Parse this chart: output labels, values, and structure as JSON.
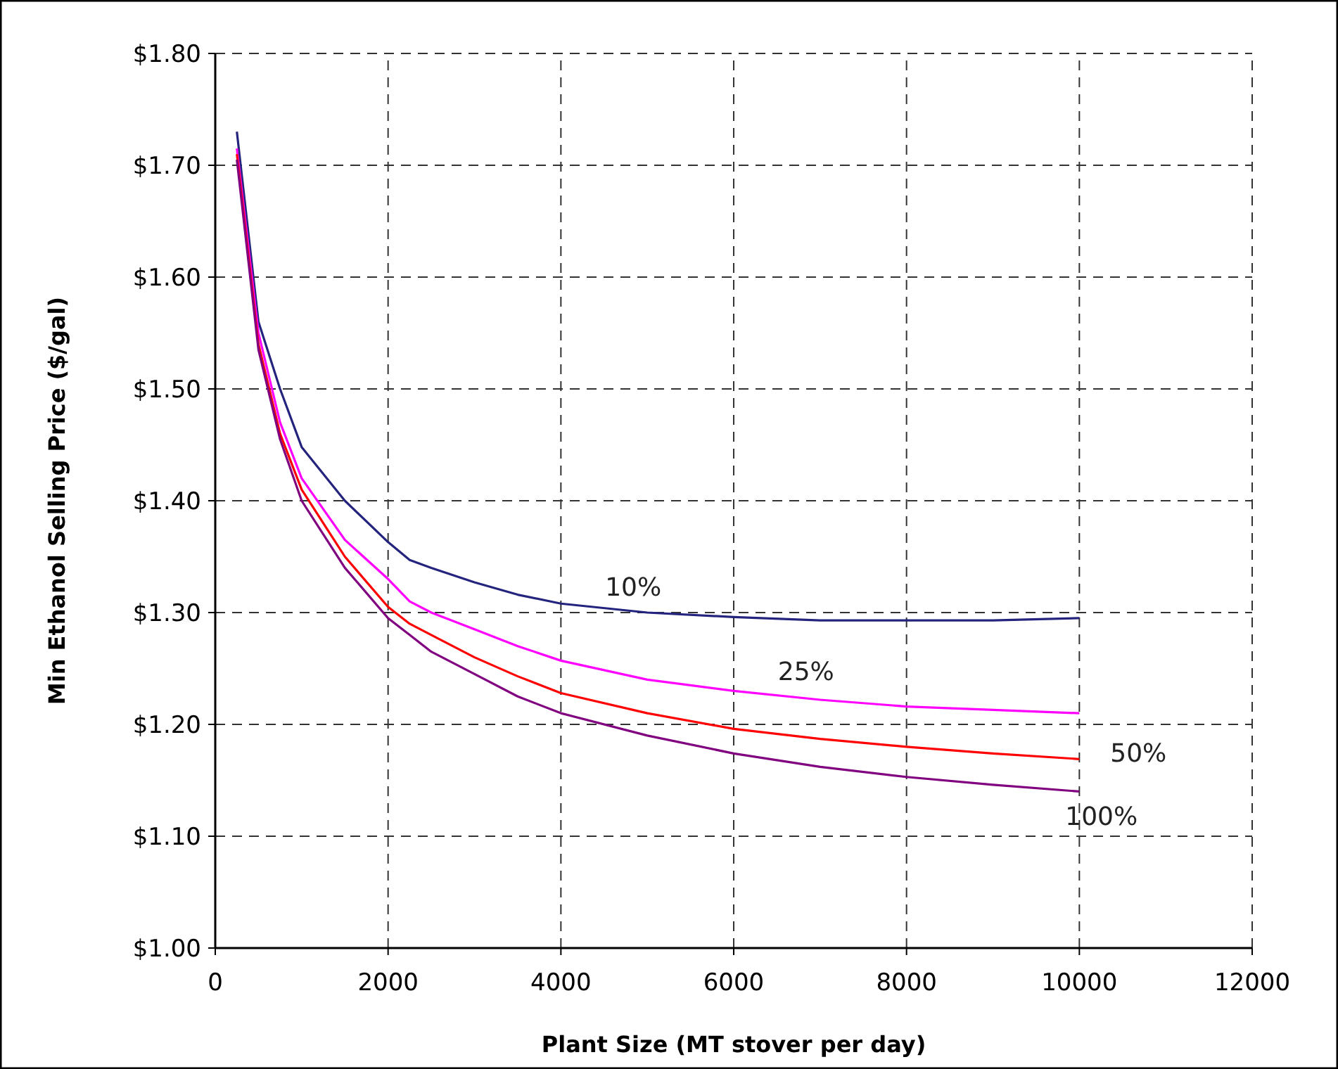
{
  "chart_data": {
    "type": "line",
    "xlabel": "Plant Size (MT stover per day)",
    "ylabel": "Min Ethanol Selling Price ($/gal)",
    "x": [
      250,
      500,
      750,
      1000,
      1500,
      2000,
      2250,
      2500,
      3000,
      3500,
      4000,
      5000,
      6000,
      7000,
      8000,
      9000,
      10000
    ],
    "series": [
      {
        "name": "10%",
        "color": "#24247e",
        "values": [
          1.73,
          1.56,
          1.5,
          1.448,
          1.4,
          1.363,
          1.347,
          1.34,
          1.327,
          1.316,
          1.308,
          1.3,
          1.296,
          1.293,
          1.293,
          1.293,
          1.295
        ]
      },
      {
        "name": "25%",
        "color": "#ff00ff",
        "values": [
          1.715,
          1.55,
          1.47,
          1.42,
          1.365,
          1.33,
          1.31,
          1.3,
          1.285,
          1.27,
          1.257,
          1.24,
          1.23,
          1.222,
          1.216,
          1.213,
          1.21
        ]
      },
      {
        "name": "50%",
        "color": "#ff0000",
        "values": [
          1.71,
          1.54,
          1.46,
          1.41,
          1.35,
          1.305,
          1.29,
          1.28,
          1.26,
          1.243,
          1.228,
          1.21,
          1.196,
          1.187,
          1.18,
          1.174,
          1.169
        ]
      },
      {
        "name": "100%",
        "color": "#800080",
        "values": [
          1.705,
          1.535,
          1.455,
          1.4,
          1.34,
          1.295,
          1.28,
          1.265,
          1.245,
          1.225,
          1.21,
          1.19,
          1.174,
          1.162,
          1.153,
          1.146,
          1.14
        ]
      }
    ],
    "xlim": [
      0,
      12000
    ],
    "xticks": [
      0,
      2000,
      4000,
      6000,
      8000,
      10000,
      12000
    ],
    "ylim": [
      1.0,
      1.8
    ],
    "yticks": [
      {
        "value": 1.0,
        "label": "$1.00"
      },
      {
        "value": 1.1,
        "label": "$1.10"
      },
      {
        "value": 1.2,
        "label": "$1.20"
      },
      {
        "value": 1.3,
        "label": "$1.30"
      },
      {
        "value": 1.4,
        "label": "$1.40"
      },
      {
        "value": 1.5,
        "label": "$1.50"
      },
      {
        "value": 1.6,
        "label": "$1.60"
      },
      {
        "value": 1.7,
        "label": "$1.70"
      },
      {
        "value": 1.8,
        "label": "$1.80"
      }
    ],
    "grid": true,
    "marker": "none",
    "line_style": "solid"
  }
}
